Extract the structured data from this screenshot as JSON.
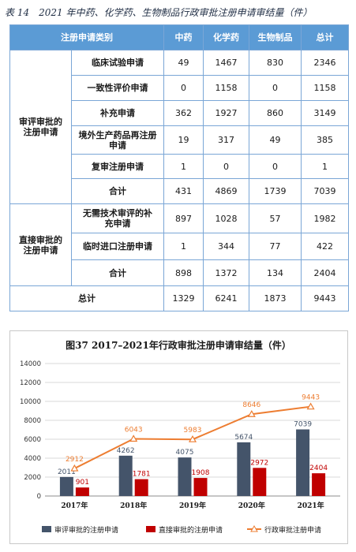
{
  "caption": "表 14　2021 年中药、化学药、生物制品行政审批注册申请审结量（件）",
  "table": {
    "headers": [
      "注册申请类别",
      "中药",
      "化学药",
      "生物制品",
      "总计"
    ],
    "groups": [
      {
        "label": "审评审批的注册申请",
        "rows": [
          {
            "label": "临床试验申请",
            "values": [
              "49",
              "1467",
              "830",
              "2346"
            ]
          },
          {
            "label": "一致性评价申请",
            "values": [
              "0",
              "1158",
              "0",
              "1158"
            ]
          },
          {
            "label": "补充申请",
            "values": [
              "362",
              "1927",
              "860",
              "3149"
            ]
          },
          {
            "label": "境外生产药品再注册申请",
            "values": [
              "19",
              "317",
              "49",
              "385"
            ]
          },
          {
            "label": "复审注册申请",
            "values": [
              "1",
              "0",
              "0",
              "1"
            ]
          },
          {
            "label": "合计",
            "values": [
              "431",
              "4869",
              "1739",
              "7039"
            ]
          }
        ]
      },
      {
        "label": "直接审批的注册申请",
        "rows": [
          {
            "label": "无需技术审评的补充申请",
            "values": [
              "897",
              "1028",
              "57",
              "1982"
            ]
          },
          {
            "label": "临时进口注册申请",
            "values": [
              "1",
              "344",
              "77",
              "422"
            ]
          },
          {
            "label": "合计",
            "values": [
              "898",
              "1372",
              "134",
              "2404"
            ]
          }
        ]
      }
    ],
    "total": {
      "label": "总计",
      "values": [
        "1329",
        "6241",
        "1873",
        "9443"
      ]
    }
  },
  "chart_data": {
    "type": "bar",
    "title": "图37  2017–2021年行政审批注册申请审结量（件）",
    "categories": [
      "2017年",
      "2018年",
      "2019年",
      "2020年",
      "2021年"
    ],
    "ylim": [
      0,
      14000
    ],
    "yticks": [
      0,
      2000,
      4000,
      6000,
      8000,
      10000,
      12000,
      14000
    ],
    "grid": true,
    "legend_position": "bottom",
    "series": [
      {
        "name": "审评审批的注册申请",
        "type": "bar",
        "color": "#44546a",
        "values": [
          2011,
          4262,
          4075,
          5674,
          7039
        ]
      },
      {
        "name": "直接审批的注册申请",
        "type": "bar",
        "color": "#c00000",
        "values": [
          901,
          1781,
          1908,
          2972,
          2404
        ]
      },
      {
        "name": "行政审批注册申请",
        "type": "line",
        "color": "#ed7d31",
        "values": [
          2912,
          6043,
          5983,
          8646,
          9443
        ]
      }
    ]
  }
}
